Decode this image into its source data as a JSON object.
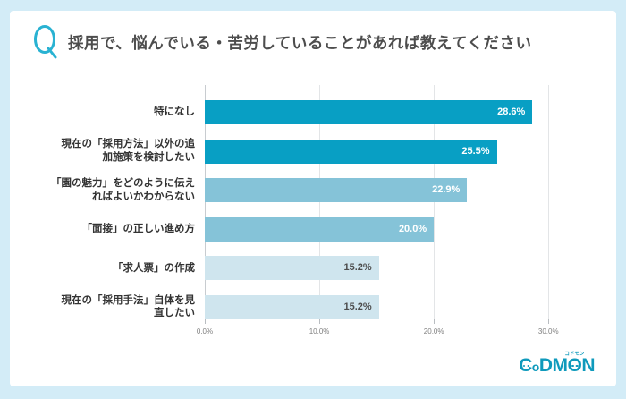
{
  "page": {
    "background_color": "#d3ecf7",
    "card_color": "#ffffff"
  },
  "header": {
    "q_icon_color": "#29b2d2",
    "title": "採用で、悩んでいる・苦労していることがあれば教えてください"
  },
  "chart_data": {
    "type": "bar",
    "orientation": "horizontal",
    "title": "採用で、悩んでいる・苦労していることがあれば教えてください",
    "categories": [
      "特になし",
      "現在の「採用方法」以外の追\n加施策を検討したい",
      "「園の魅力」をどのように伝え\nればよいかわからない",
      "「面接」の正しい進め方",
      "「求人票」の作成",
      "現在の「採用手法」自体を見\n直したい"
    ],
    "values": [
      28.6,
      25.5,
      22.9,
      20.0,
      15.2,
      15.2
    ],
    "value_labels": [
      "28.6%",
      "25.5%",
      "22.9%",
      "20.0%",
      "15.2%",
      "15.2%"
    ],
    "bar_colors": [
      "#089fc4",
      "#089fc4",
      "#85c3d8",
      "#85c3d8",
      "#cfe5ee",
      "#cfe5ee"
    ],
    "value_label_colors": [
      "#ffffff",
      "#ffffff",
      "#ffffff",
      "#ffffff",
      "#4d4d4d",
      "#4d4d4d"
    ],
    "xlabel": "",
    "ylabel": "",
    "x_ticks": [
      "0.0%",
      "10.0%",
      "20.0%",
      "30.0%"
    ],
    "x_tick_values": [
      0,
      10,
      20,
      30
    ],
    "xlim": [
      0,
      31.7
    ],
    "grid": true,
    "legend": "none"
  },
  "logo": {
    "letters": [
      "C",
      "o",
      "D",
      "M",
      "O",
      "N"
    ],
    "ruby": "コドモン",
    "color": "#0f9abc"
  }
}
